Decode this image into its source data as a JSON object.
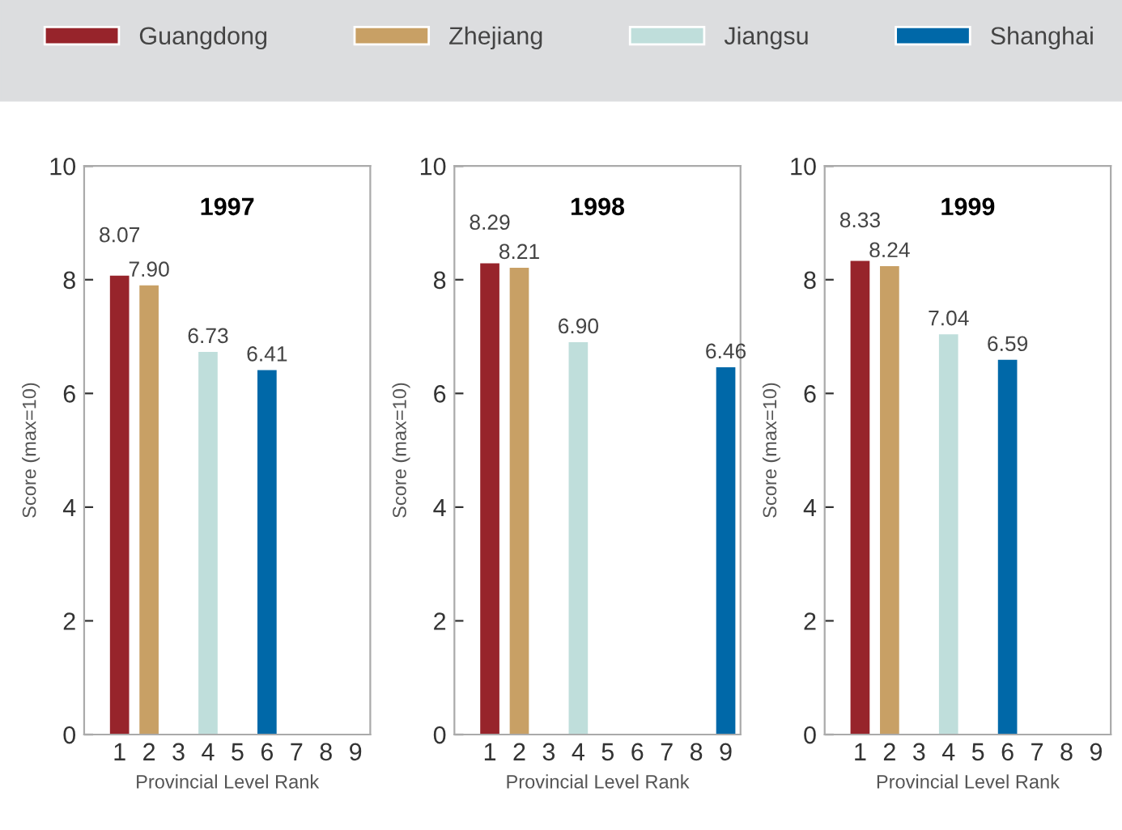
{
  "chart_data": [
    {
      "type": "bar",
      "title": "1997",
      "xlabel": "Provincial Level Rank",
      "ylabel": "Score (max=10)",
      "categories": [
        "1",
        "2",
        "3",
        "4",
        "5",
        "6",
        "7",
        "8",
        "9"
      ],
      "ylim": [
        0,
        10
      ],
      "yticks": [
        0,
        2,
        4,
        6,
        8,
        10
      ],
      "grid": false,
      "legend": "top",
      "series": [
        {
          "name": "Guangdong",
          "color": "#97242b",
          "values": [
            8.07,
            null,
            null,
            null,
            null,
            null,
            null,
            null,
            null
          ],
          "value_labels": [
            "8.07",
            null,
            null,
            null,
            null,
            null,
            null,
            null,
            null
          ]
        },
        {
          "name": "Zhejiang",
          "color": "#c8a065",
          "values": [
            null,
            7.9,
            null,
            null,
            null,
            null,
            null,
            null,
            null
          ],
          "value_labels": [
            null,
            "7.90",
            null,
            null,
            null,
            null,
            null,
            null,
            null
          ]
        },
        {
          "name": "Jiangsu",
          "color": "#bfdedb",
          "values": [
            null,
            null,
            null,
            6.73,
            null,
            null,
            null,
            null,
            null
          ],
          "value_labels": [
            null,
            null,
            null,
            "6.73",
            null,
            null,
            null,
            null,
            null
          ]
        },
        {
          "name": "Shanghai",
          "color": "#0068a8",
          "values": [
            null,
            null,
            null,
            null,
            null,
            6.41,
            null,
            null,
            null
          ],
          "value_labels": [
            null,
            null,
            null,
            null,
            null,
            "6.41",
            null,
            null,
            null
          ]
        }
      ]
    },
    {
      "type": "bar",
      "title": "1998",
      "xlabel": "Provincial Level Rank",
      "ylabel": "Score (max=10)",
      "categories": [
        "1",
        "2",
        "3",
        "4",
        "5",
        "6",
        "7",
        "8",
        "9"
      ],
      "ylim": [
        0,
        10
      ],
      "yticks": [
        0,
        2,
        4,
        6,
        8,
        10
      ],
      "grid": false,
      "series": [
        {
          "color": "#97242b",
          "values": [
            8.29,
            null,
            null,
            null,
            null,
            null,
            null,
            null,
            null
          ],
          "value_labels": [
            "8.29",
            null,
            null,
            null,
            null,
            null,
            null,
            null,
            null
          ]
        },
        {
          "color": "#c8a065",
          "values": [
            null,
            8.21,
            null,
            null,
            null,
            null,
            null,
            null,
            null
          ],
          "value_labels": [
            null,
            "8.21",
            null,
            null,
            null,
            null,
            null,
            null,
            null
          ]
        },
        {
          "color": "#bfdedb",
          "values": [
            null,
            null,
            null,
            6.9,
            null,
            null,
            null,
            null,
            null
          ],
          "value_labels": [
            null,
            null,
            null,
            "6.90",
            null,
            null,
            null,
            null,
            null
          ]
        },
        {
          "color": "#0068a8",
          "values": [
            null,
            null,
            null,
            null,
            null,
            null,
            null,
            null,
            6.46
          ],
          "value_labels": [
            null,
            null,
            null,
            null,
            null,
            null,
            null,
            null,
            "6.46"
          ]
        }
      ]
    },
    {
      "type": "bar",
      "title": "1999",
      "xlabel": "Provincial Level Rank",
      "ylabel": "Score (max=10)",
      "categories": [
        "1",
        "2",
        "3",
        "4",
        "5",
        "6",
        "7",
        "8",
        "9"
      ],
      "ylim": [
        0,
        10
      ],
      "yticks": [
        0,
        2,
        4,
        6,
        8,
        10
      ],
      "grid": false,
      "series": [
        {
          "color": "#97242b",
          "values": [
            8.33,
            null,
            null,
            null,
            null,
            null,
            null,
            null,
            null
          ],
          "value_labels": [
            "8.33",
            null,
            null,
            null,
            null,
            null,
            null,
            null,
            null
          ]
        },
        {
          "color": "#c8a065",
          "values": [
            null,
            8.24,
            null,
            null,
            null,
            null,
            null,
            null,
            null
          ],
          "value_labels": [
            null,
            "8.24",
            null,
            null,
            null,
            null,
            null,
            null,
            null
          ]
        },
        {
          "color": "#bfdedb",
          "values": [
            null,
            null,
            null,
            7.04,
            null,
            null,
            null,
            null,
            null
          ],
          "value_labels": [
            null,
            null,
            null,
            "7.04",
            null,
            null,
            null,
            null,
            null
          ]
        },
        {
          "color": "#0068a8",
          "values": [
            null,
            null,
            null,
            null,
            null,
            6.59,
            null,
            null,
            null
          ],
          "value_labels": [
            null,
            null,
            null,
            null,
            null,
            "6.59",
            null,
            null,
            null
          ]
        }
      ]
    }
  ]
}
